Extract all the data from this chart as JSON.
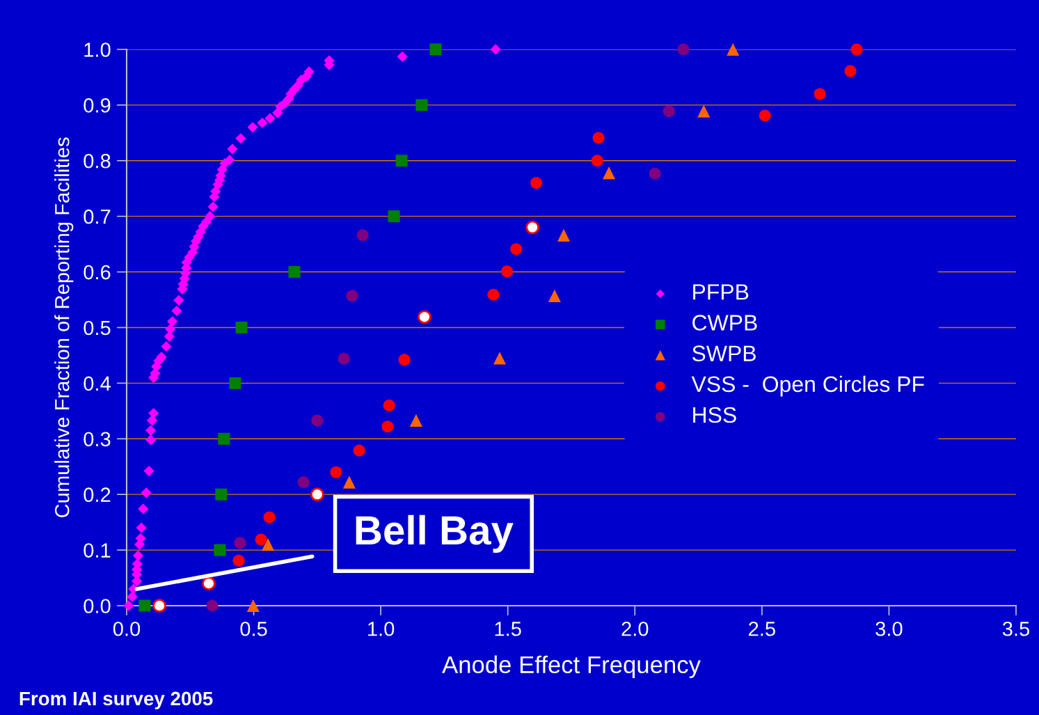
{
  "chart_data": {
    "type": "scatter",
    "xlabel": "Anode Effect Frequency",
    "ylabel": "Cumulative Fraction of Reporting Facilities",
    "xlim": [
      0,
      3.5
    ],
    "ylim": [
      0,
      1.0
    ],
    "xticks": [
      {
        "value": 0,
        "label": "0.0"
      },
      0.5,
      {
        "value": 1,
        "label": "1.0"
      },
      1.5,
      {
        "value": 2,
        "label": "2.0"
      },
      2.5,
      {
        "value": 3,
        "label": "3.0"
      },
      3.5
    ],
    "yticks": [
      {
        "value": 0,
        "label": "0.0"
      },
      0.1,
      0.2,
      0.3,
      0.4,
      0.5,
      0.6,
      0.7,
      0.8,
      0.9,
      {
        "value": 1,
        "label": "1.0"
      }
    ],
    "grid": "y",
    "legend": "right",
    "series": [
      {
        "name": "PFPB",
        "color": "#ff00ff",
        "marker": "diamond",
        "x": [
          0.008,
          0.022,
          0.027,
          0.04,
          0.04,
          0.04,
          0.042,
          0.045,
          0.051,
          0.055,
          0.058,
          0.065,
          0.077,
          0.088,
          0.095,
          0.095,
          0.1,
          0.106,
          0.106,
          0.112,
          0.117,
          0.126,
          0.137,
          0.156,
          0.168,
          0.172,
          0.18,
          0.197,
          0.205,
          0.219,
          0.222,
          0.228,
          0.232,
          0.235,
          0.236,
          0.246,
          0.26,
          0.266,
          0.273,
          0.282,
          0.291,
          0.301,
          0.314,
          0.328,
          0.34,
          0.345,
          0.35,
          0.359,
          0.366,
          0.37,
          0.376,
          0.386,
          0.405,
          0.416,
          0.449,
          0.496,
          0.534,
          0.564,
          0.594,
          0.605,
          0.622,
          0.638,
          0.646,
          0.66,
          0.674,
          0.687,
          0.707,
          0.718,
          0.797,
          0.797,
          1.085,
          1.452
        ],
        "values": [
          0.0,
          0.016,
          0.03,
          0.044,
          0.056,
          0.065,
          0.075,
          0.09,
          0.11,
          0.121,
          0.14,
          0.174,
          0.203,
          0.242,
          0.298,
          0.315,
          0.333,
          0.346,
          0.41,
          0.418,
          0.43,
          0.44,
          0.447,
          0.466,
          0.484,
          0.497,
          0.511,
          0.53,
          0.549,
          0.569,
          0.578,
          0.588,
          0.598,
          0.607,
          0.617,
          0.626,
          0.635,
          0.645,
          0.655,
          0.663,
          0.672,
          0.682,
          0.69,
          0.7,
          0.717,
          0.735,
          0.745,
          0.757,
          0.765,
          0.773,
          0.784,
          0.795,
          0.801,
          0.821,
          0.84,
          0.86,
          0.868,
          0.876,
          0.886,
          0.897,
          0.903,
          0.911,
          0.92,
          0.928,
          0.935,
          0.945,
          0.951,
          0.96,
          0.972,
          0.98,
          0.987,
          1.0
        ]
      },
      {
        "name": "CWPB",
        "color": "#008000",
        "marker": "square",
        "x": [
          0.071,
          0.367,
          0.372,
          0.383,
          0.427,
          0.452,
          0.66,
          1.052,
          1.082,
          1.161,
          1.216
        ],
        "values": [
          0.0,
          0.1,
          0.2,
          0.3,
          0.4,
          0.5,
          0.6,
          0.7,
          0.8,
          0.9,
          1.0
        ]
      },
      {
        "name": "SWPB",
        "color": "#ff6600",
        "marker": "triangle",
        "x": [
          0.498,
          0.556,
          0.876,
          1.139,
          1.468,
          1.684,
          1.72,
          1.898,
          2.271,
          2.386
        ],
        "values": [
          0.0,
          0.11,
          0.222,
          0.333,
          0.445,
          0.557,
          0.666,
          0.778,
          0.889,
          1.0
        ]
      },
      {
        "name": "VSS -  Open Circles PF",
        "color": "#ff0000",
        "marker": "circle",
        "x": [
          0.441,
          0.529,
          0.562,
          0.824,
          0.915,
          1.027,
          1.033,
          1.093,
          1.443,
          1.497,
          1.533,
          1.612,
          1.852,
          1.857,
          2.512,
          2.728,
          2.848,
          2.873
        ],
        "values": [
          0.081,
          0.119,
          0.159,
          0.24,
          0.279,
          0.322,
          0.36,
          0.442,
          0.559,
          0.601,
          0.641,
          0.76,
          0.8,
          0.841,
          0.881,
          0.92,
          0.961,
          1.0
        ]
      },
      {
        "color": "#ffffff",
        "marker": "circle",
        "x": [
          0.129,
          0.323,
          0.75,
          1.172,
          1.597
        ],
        "values": [
          0.0,
          0.04,
          0.2,
          0.519,
          0.68
        ]
      },
      {
        "name": "HSS",
        "color": "#800080",
        "marker": "circle",
        "x": [
          0.337,
          0.446,
          0.696,
          0.75,
          0.855,
          0.887,
          0.929,
          2.079,
          2.134,
          2.191
        ],
        "values": [
          0.0,
          0.113,
          0.222,
          0.333,
          0.444,
          0.557,
          0.666,
          0.777,
          0.889,
          1.0
        ]
      }
    ],
    "annotations": [
      {
        "text": "Bell Bay",
        "x": 0.04,
        "y": 0.03
      },
      "From IAI survey 2005"
    ]
  }
}
